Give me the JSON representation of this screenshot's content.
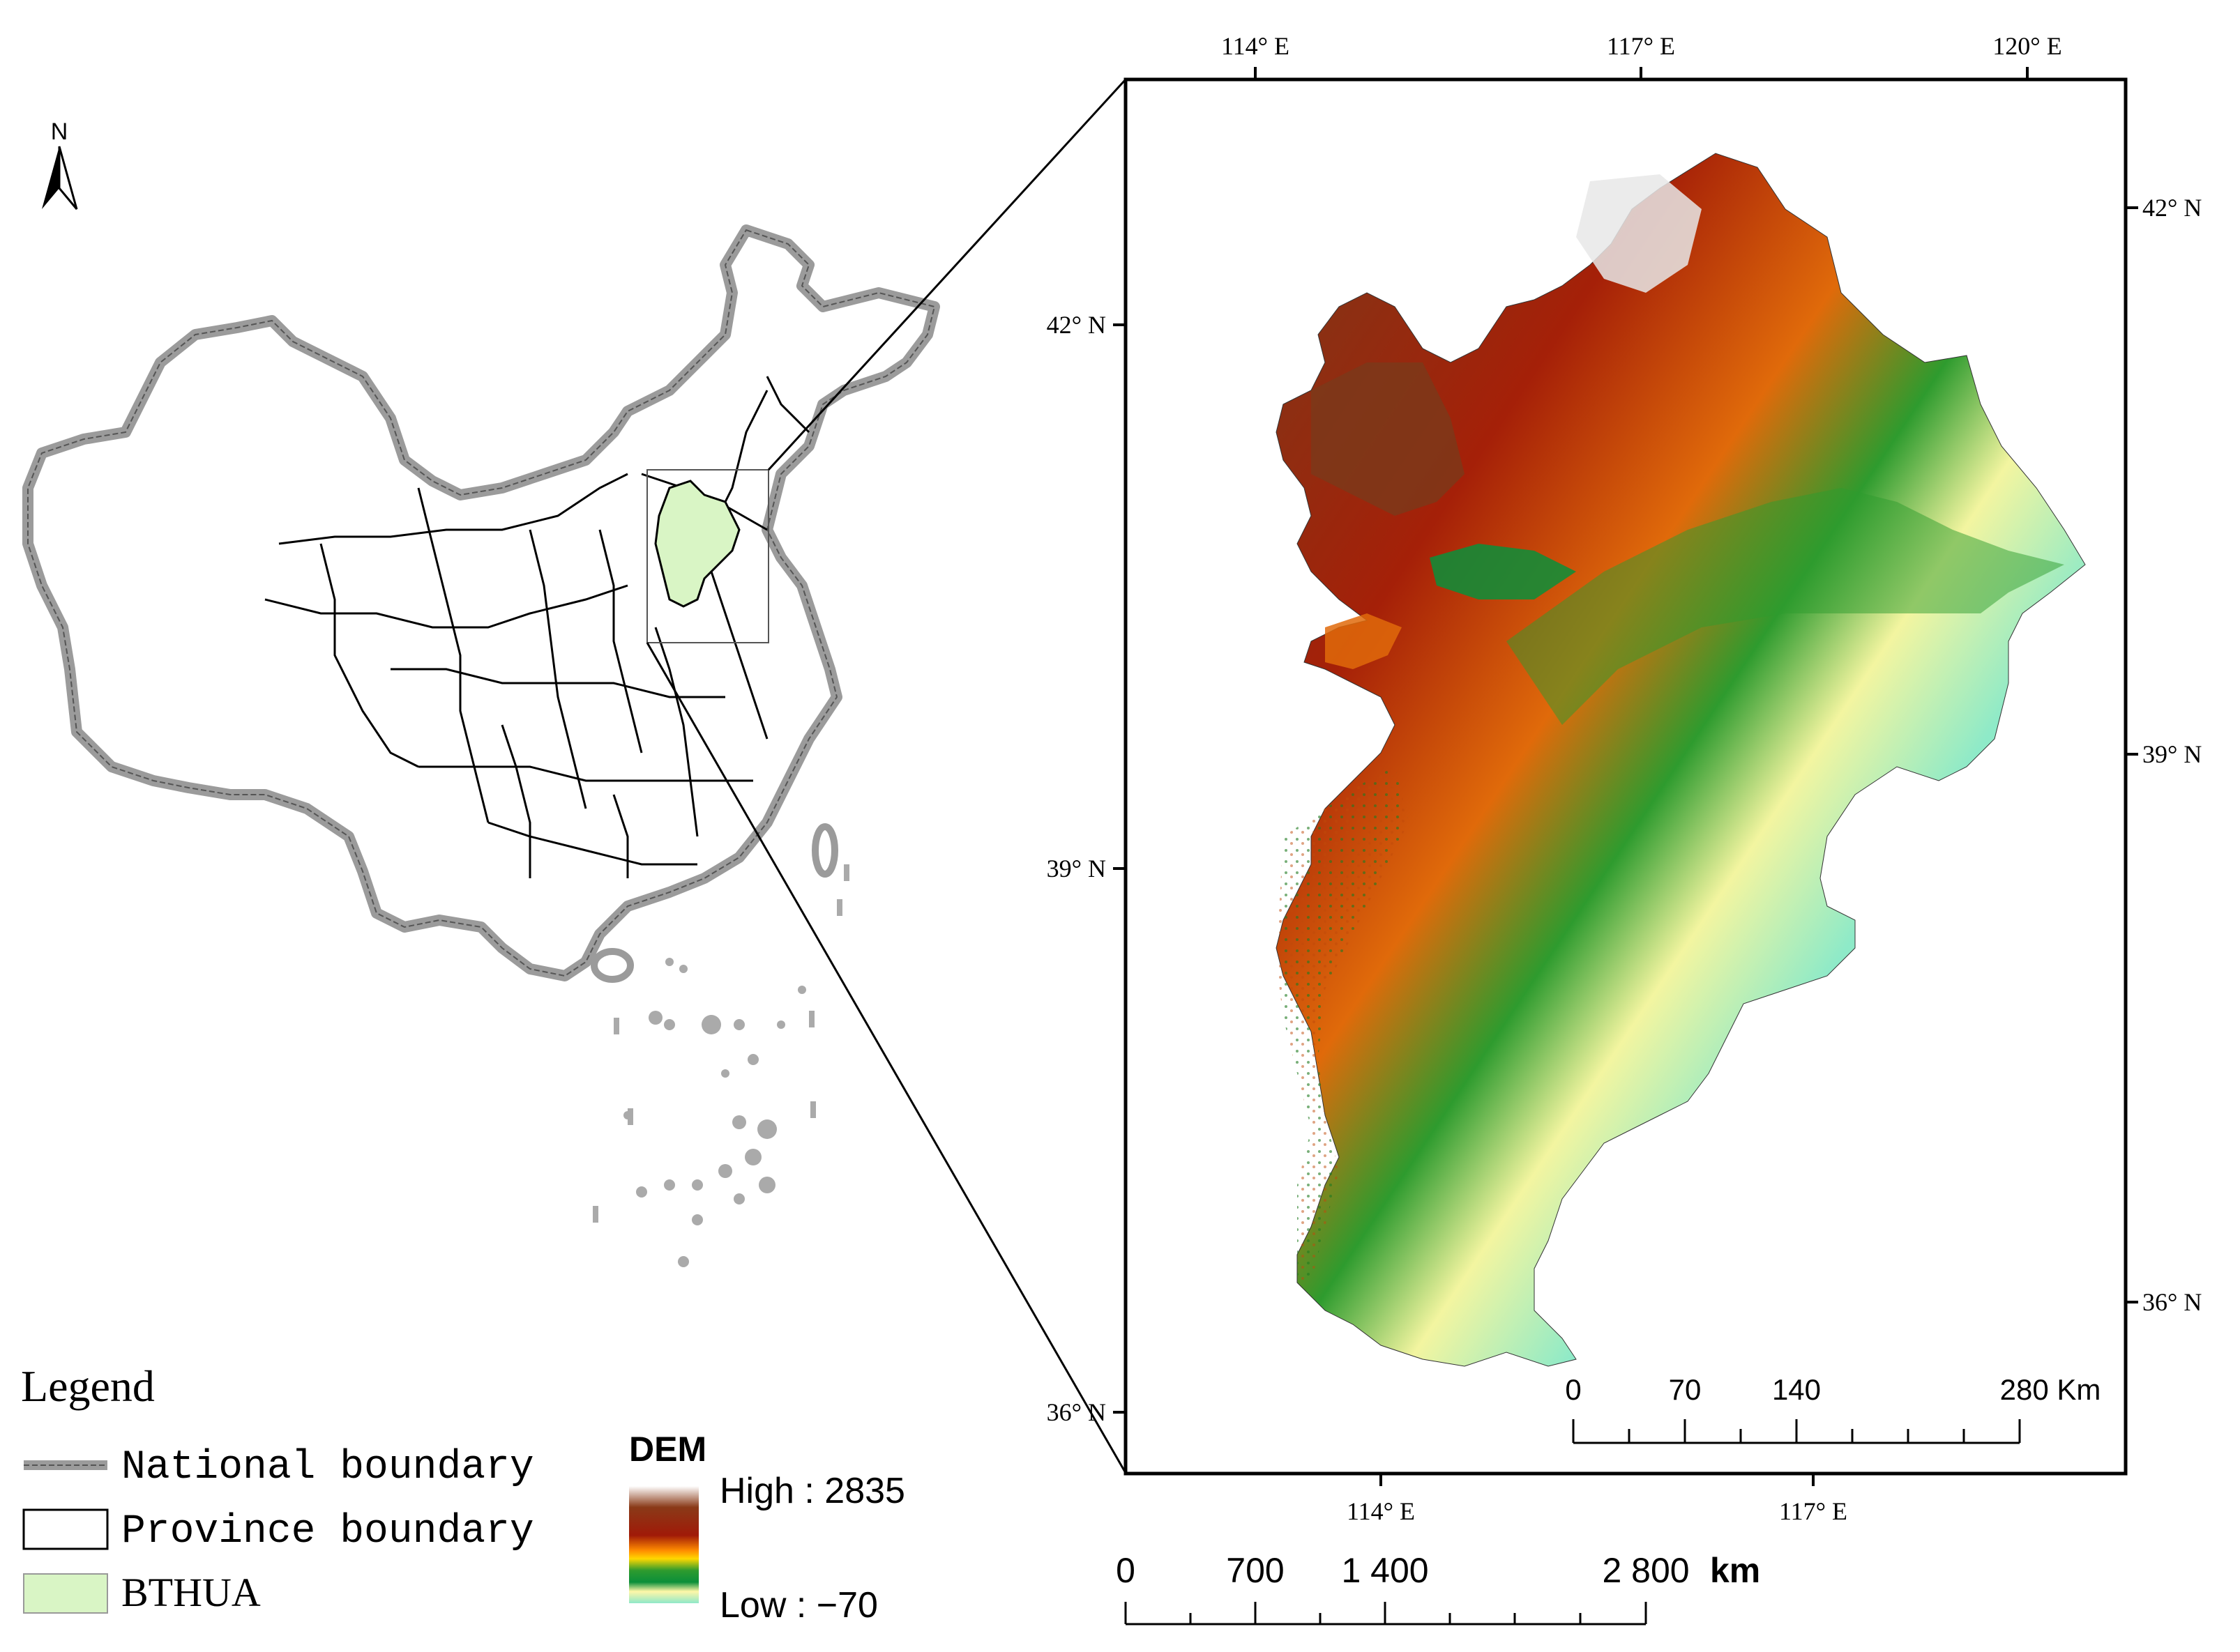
{
  "north_arrow": {
    "label": "N"
  },
  "inset": {
    "axis_top": [
      "114° E",
      "117° E",
      "120° E"
    ],
    "axis_bottom": [
      "114° E",
      "117° E"
    ],
    "axis_left": [
      "42° N",
      "39° N",
      "36° N"
    ],
    "axis_right": [
      "42° N",
      "39° N",
      "36° N"
    ],
    "scale": {
      "ticks": [
        "0",
        "70",
        "140",
        "280 Km"
      ]
    }
  },
  "legend": {
    "title": "Legend",
    "items": [
      {
        "label": "National boundary",
        "symbol": "national-boundary"
      },
      {
        "label": "Province boundary",
        "symbol": "province-boundary"
      },
      {
        "label": "BTHUA",
        "symbol": "bthua-fill"
      }
    ]
  },
  "dem": {
    "title": "DEM",
    "high": "High : 2835",
    "low": "Low : −70",
    "gradient": [
      "#ffffff",
      "#7a2e0c",
      "#a52a0a",
      "#ff8c00",
      "#ffd700",
      "#2e8b2e",
      "#0b8f3a",
      "#fff7a8",
      "#8fe8c9"
    ]
  },
  "main_scale": {
    "ticks": [
      "0",
      "700",
      "1 400",
      "2 800"
    ],
    "unit": "km"
  },
  "colors": {
    "bthua": "#d9f5c5",
    "national": "#9b9b9b",
    "lowland": "#8eeac8"
  }
}
